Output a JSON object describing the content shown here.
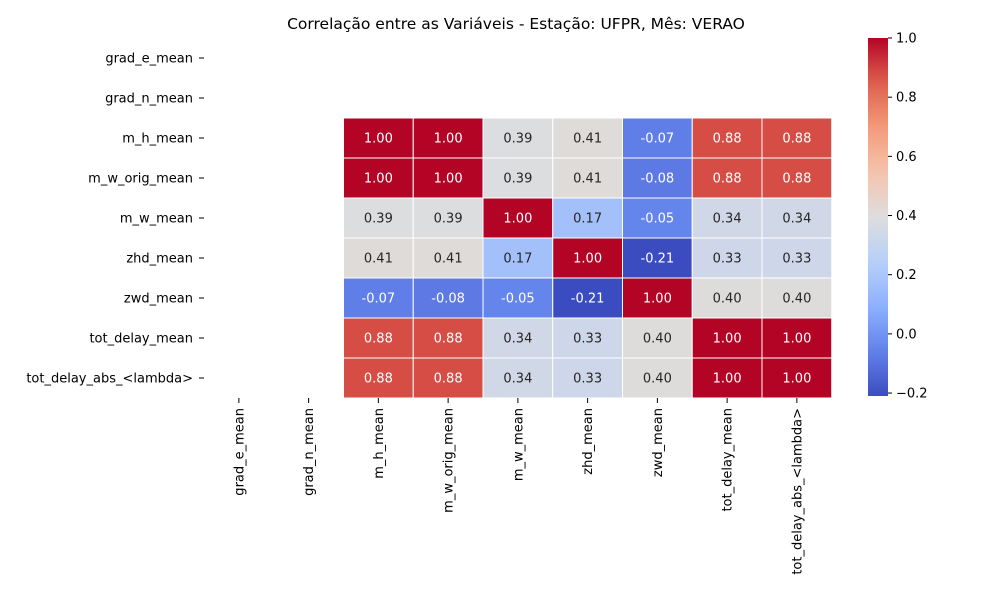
{
  "chart_data": {
    "type": "heatmap",
    "title": "Correlação entre as Variáveis - Estação: UFPR, Mês: VERAO",
    "xlabel": "",
    "ylabel": "",
    "rows": [
      "grad_e_mean",
      "grad_n_mean",
      "m_h_mean",
      "m_w_orig_mean",
      "m_w_mean",
      "zhd_mean",
      "zwd_mean",
      "tot_delay_mean",
      "tot_delay_abs_<lambda>"
    ],
    "columns": [
      "grad_e_mean",
      "grad_n_mean",
      "m_h_mean",
      "m_w_orig_mean",
      "m_w_mean",
      "zhd_mean",
      "zwd_mean",
      "tot_delay_mean",
      "tot_delay_abs_<lambda>"
    ],
    "values": [
      [
        null,
        null,
        null,
        null,
        null,
        null,
        null,
        null,
        null
      ],
      [
        null,
        null,
        null,
        null,
        null,
        null,
        null,
        null,
        null
      ],
      [
        null,
        null,
        1.0,
        1.0,
        0.39,
        0.41,
        -0.07,
        0.88,
        0.88
      ],
      [
        null,
        null,
        1.0,
        1.0,
        0.39,
        0.41,
        -0.08,
        0.88,
        0.88
      ],
      [
        null,
        null,
        0.39,
        0.39,
        1.0,
        0.17,
        -0.05,
        0.34,
        0.34
      ],
      [
        null,
        null,
        0.41,
        0.41,
        0.17,
        1.0,
        -0.21,
        0.33,
        0.33
      ],
      [
        null,
        null,
        -0.07,
        -0.08,
        -0.05,
        -0.21,
        1.0,
        0.4,
        0.4
      ],
      [
        null,
        null,
        0.88,
        0.88,
        0.34,
        0.33,
        0.4,
        1.0,
        1.0
      ],
      [
        null,
        null,
        0.88,
        0.88,
        0.34,
        0.33,
        0.4,
        1.0,
        1.0
      ]
    ],
    "value_format": "0.00",
    "colormap": "coolwarm",
    "color_range": [
      -0.21,
      1.0
    ],
    "colorbar_ticks": [
      "1.0",
      "0.8",
      "0.6",
      "0.4",
      "0.2",
      "0.0",
      "−0.2"
    ],
    "colorbar_tick_values": [
      1.0,
      0.8,
      0.6,
      0.4,
      0.2,
      0.0,
      -0.2
    ],
    "grid": false,
    "legend": "colorbar-right"
  }
}
